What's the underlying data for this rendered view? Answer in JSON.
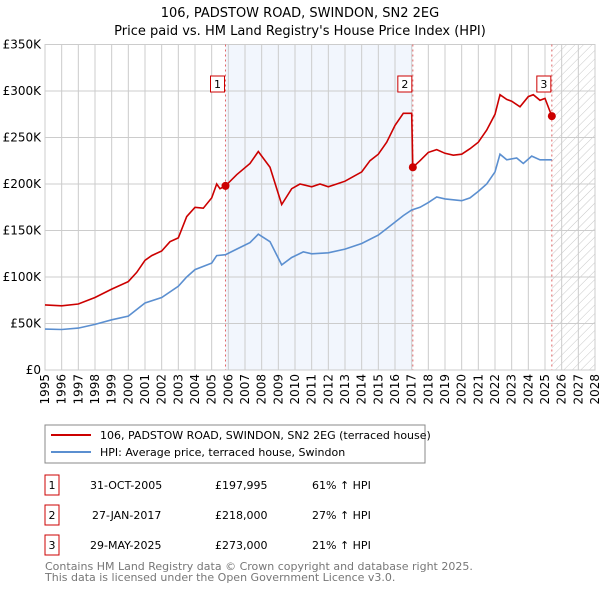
{
  "title": "106, PADSTOW ROAD, SWINDON, SN2 2EG",
  "subtitle": "Price paid vs. HM Land Registry's House Price Index (HPI)",
  "chart_data": {
    "type": "line",
    "title": "106, PADSTOW ROAD, SWINDON, SN2 2EG",
    "subtitle": "Price paid vs. HM Land Registry's House Price Index (HPI)",
    "xlim": [
      1995,
      2028
    ],
    "ylim": [
      0,
      350000
    ],
    "grid": true,
    "x_ticks": [
      "1995",
      "1996",
      "1997",
      "1998",
      "1999",
      "2000",
      "2001",
      "2002",
      "2003",
      "2004",
      "2005",
      "2006",
      "2007",
      "2008",
      "2009",
      "2010",
      "2011",
      "2012",
      "2013",
      "2014",
      "2015",
      "2016",
      "2017",
      "2018",
      "2019",
      "2020",
      "2021",
      "2022",
      "2023",
      "2024",
      "2025",
      "2026",
      "2027",
      "2028"
    ],
    "y_ticks": [
      {
        "v": 0,
        "label": "£0"
      },
      {
        "v": 50000,
        "label": "£50K"
      },
      {
        "v": 100000,
        "label": "£100K"
      },
      {
        "v": 150000,
        "label": "£150K"
      },
      {
        "v": 200000,
        "label": "£200K"
      },
      {
        "v": 250000,
        "label": "£250K"
      },
      {
        "v": 300000,
        "label": "£300K"
      },
      {
        "v": 350000,
        "label": "£350K"
      }
    ],
    "shaded_range": [
      2005.83,
      2017.07
    ],
    "hatched_from": 2025.41,
    "series": [
      {
        "name": "106, PADSTOW ROAD, SWINDON, SN2 2EG (terraced house)",
        "color": "#cc0000",
        "x": [
          1995,
          1996,
          1997,
          1998,
          1999,
          2000,
          2000.5,
          2001,
          2001.4,
          2002,
          2002.5,
          2003,
          2003.5,
          2004,
          2004.5,
          2005,
          2005.3,
          2005.5,
          2005.83,
          2006.5,
          2007.3,
          2007.8,
          2008.5,
          2009.2,
          2009.8,
          2010.3,
          2011,
          2011.5,
          2012,
          2012.5,
          2013,
          2013.5,
          2014,
          2014.5,
          2015,
          2015.5,
          2016,
          2016.5,
          2017.0,
          2017.07,
          2017.5,
          2018,
          2018.5,
          2019,
          2019.5,
          2020,
          2020.5,
          2021,
          2021.5,
          2022,
          2022.3,
          2022.7,
          2023,
          2023.5,
          2024,
          2024.3,
          2024.7,
          2025.0,
          2025.41
        ],
        "y": [
          70000,
          69000,
          71000,
          78000,
          87000,
          95000,
          105000,
          118000,
          123000,
          128000,
          138000,
          142000,
          165000,
          175000,
          174000,
          185000,
          200000,
          195000,
          197995,
          210000,
          222000,
          235000,
          218000,
          178000,
          195000,
          200000,
          197000,
          200000,
          197000,
          200000,
          203000,
          208000,
          213000,
          225000,
          232000,
          245000,
          263000,
          276000,
          276000,
          218000,
          225000,
          234000,
          237000,
          233000,
          231000,
          232000,
          238000,
          245000,
          258000,
          275000,
          296000,
          291000,
          289000,
          283000,
          294000,
          296000,
          290000,
          292000,
          273000
        ]
      },
      {
        "name": "HPI: Average price, terraced house, Swindon",
        "color": "#5b8fd0",
        "x": [
          1995,
          1996,
          1997,
          1998,
          1999,
          2000,
          2001,
          2002,
          2003,
          2003.5,
          2004,
          2005,
          2005.3,
          2005.83,
          2006.5,
          2007.3,
          2007.8,
          2008.5,
          2009.2,
          2009.8,
          2010.5,
          2011,
          2012,
          2013,
          2014,
          2015,
          2015.5,
          2016.5,
          2017,
          2017.5,
          2018,
          2018.5,
          2019,
          2020,
          2020.5,
          2021,
          2021.5,
          2022,
          2022.3,
          2022.7,
          2023.3,
          2023.7,
          2024.2,
          2024.7,
          2025.41
        ],
        "y": [
          44000,
          43500,
          45000,
          49000,
          54000,
          58000,
          72000,
          78000,
          90000,
          100000,
          108000,
          115000,
          123000,
          124000,
          130000,
          137000,
          146000,
          138000,
          113000,
          121000,
          127000,
          125000,
          126000,
          130000,
          136000,
          145000,
          152000,
          166000,
          172000,
          175000,
          180000,
          186000,
          184000,
          182000,
          185000,
          192000,
          200000,
          213000,
          232000,
          226000,
          228000,
          222000,
          230000,
          226000,
          226000
        ]
      }
    ],
    "annotations": [
      {
        "label": "1",
        "x": 2005.83,
        "y": 197995
      },
      {
        "label": "2",
        "x": 2017.07,
        "y": 218000
      },
      {
        "label": "3",
        "x": 2025.41,
        "y": 273000
      }
    ]
  },
  "legend": [
    {
      "label": "106, PADSTOW ROAD, SWINDON, SN2 2EG (terraced house)",
      "color": "#cc0000"
    },
    {
      "label": "HPI: Average price, terraced house, Swindon",
      "color": "#5b8fd0"
    }
  ],
  "transactions": [
    {
      "num": "1",
      "date": "31-OCT-2005",
      "price": "£197,995",
      "hpi": "61% ↑ HPI"
    },
    {
      "num": "2",
      "date": "27-JAN-2017",
      "price": "£218,000",
      "hpi": "27% ↑ HPI"
    },
    {
      "num": "3",
      "date": "29-MAY-2025",
      "price": "£273,000",
      "hpi": "21% ↑ HPI"
    }
  ],
  "footer": {
    "line1": "Contains HM Land Registry data © Crown copyright and database right 2025.",
    "line2": "This data is licensed under the Open Government Licence v3.0."
  }
}
